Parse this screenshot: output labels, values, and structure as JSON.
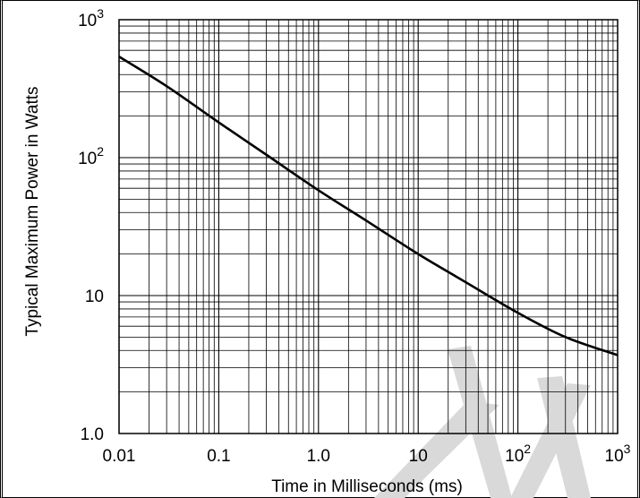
{
  "chart_data": {
    "type": "line",
    "title": "",
    "xlabel": "Time in Milliseconds (ms)",
    "ylabel": "Typical Maximum Power in Watts",
    "x_scale": "log",
    "y_scale": "log",
    "xlim": [
      0.01,
      1000
    ],
    "ylim": [
      1,
      1000
    ],
    "grid": true,
    "x_ticks": [
      {
        "value": 0.01,
        "label": "0.01"
      },
      {
        "value": 0.1,
        "label": "0.1"
      },
      {
        "value": 1,
        "label": "1.0"
      },
      {
        "value": 10,
        "label": "10"
      },
      {
        "value": 100,
        "label": "10",
        "exp": "2"
      },
      {
        "value": 1000,
        "label": "10",
        "exp": "3"
      }
    ],
    "y_ticks": [
      {
        "value": 1,
        "label": "1.0"
      },
      {
        "value": 10,
        "label": "10"
      },
      {
        "value": 100,
        "label": "10",
        "exp": "2"
      },
      {
        "value": 1000,
        "label": "10",
        "exp": "3"
      }
    ],
    "series": [
      {
        "color": "#000000",
        "x": [
          0.01,
          0.03,
          0.1,
          0.3,
          1,
          3,
          10,
          30,
          100,
          300,
          1000
        ],
        "y": [
          540,
          330,
          180,
          105,
          58,
          35,
          20,
          12.5,
          7.5,
          5.0,
          3.7
        ]
      }
    ]
  },
  "watermark": {
    "color": "#d9d9d9"
  }
}
